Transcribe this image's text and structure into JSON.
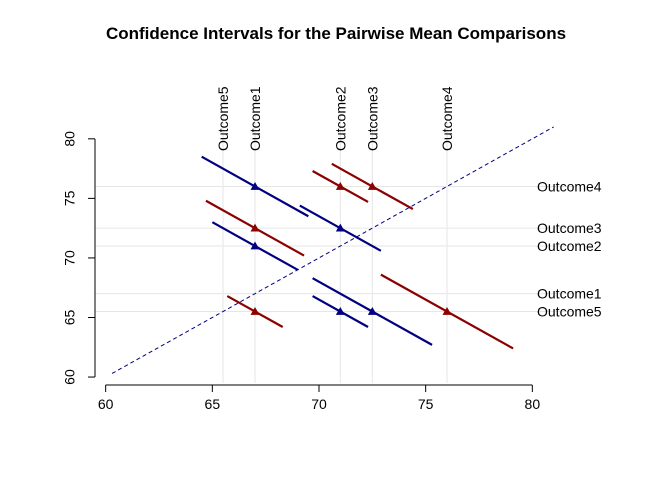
{
  "chart_data": {
    "type": "line",
    "title": "Confidence Intervals for the Pairwise Mean Comparisons",
    "xlabel": "",
    "ylabel": "",
    "xlim": [
      59.5,
      82
    ],
    "ylim": [
      59.5,
      82
    ],
    "x_ticks": [
      60,
      65,
      70,
      75,
      80
    ],
    "y_ticks": [
      60,
      65,
      70,
      75,
      80
    ],
    "grid": true,
    "reference_line": {
      "from": [
        60.3,
        60.3
      ],
      "to": [
        81,
        81
      ],
      "style": "dashed",
      "color": "#000080"
    },
    "means": [
      {
        "name": "Outcome1",
        "value": 67.0
      },
      {
        "name": "Outcome2",
        "value": 71.0
      },
      {
        "name": "Outcome3",
        "value": 72.5
      },
      {
        "name": "Outcome4",
        "value": 76.0
      },
      {
        "name": "Outcome5",
        "value": 65.5
      }
    ],
    "top_labels": [
      {
        "text": "Outcome5",
        "x": 65.5
      },
      {
        "text": "Outcome1",
        "x": 67.0
      },
      {
        "text": "Outcome2",
        "x": 71.0
      },
      {
        "text": "Outcome3",
        "x": 72.5
      },
      {
        "text": "Outcome4",
        "x": 76.0
      }
    ],
    "right_labels": [
      {
        "text": "Outcome4",
        "y": 76.0
      },
      {
        "text": "Outcome3",
        "y": 72.5
      },
      {
        "text": "Outcome2",
        "y": 71.0
      },
      {
        "text": "Outcome1",
        "y": 67.0
      },
      {
        "text": "Outcome5",
        "y": 65.5
      }
    ],
    "intervals": [
      {
        "x": 67.0,
        "y": 76.0,
        "halfwidth": 2.5,
        "color": "#000080"
      },
      {
        "x": 71.0,
        "y": 76.0,
        "halfwidth": 1.3,
        "color": "#8B0000"
      },
      {
        "x": 72.5,
        "y": 76.0,
        "halfwidth": 1.9,
        "color": "#8B0000"
      },
      {
        "x": 67.0,
        "y": 72.5,
        "halfwidth": 2.3,
        "color": "#8B0000"
      },
      {
        "x": 71.0,
        "y": 72.5,
        "halfwidth": 1.9,
        "color": "#000080"
      },
      {
        "x": 67.0,
        "y": 71.0,
        "halfwidth": 2.0,
        "color": "#000080"
      },
      {
        "x": 71.0,
        "y": 65.5,
        "halfwidth": 1.3,
        "color": "#000080"
      },
      {
        "x": 72.5,
        "y": 65.5,
        "halfwidth": 2.8,
        "color": "#000080"
      },
      {
        "x": 76.0,
        "y": 65.5,
        "halfwidth": 3.1,
        "color": "#8B0000"
      },
      {
        "x": 67.0,
        "y": 65.5,
        "halfwidth": 1.3,
        "color": "#8B0000"
      }
    ]
  }
}
